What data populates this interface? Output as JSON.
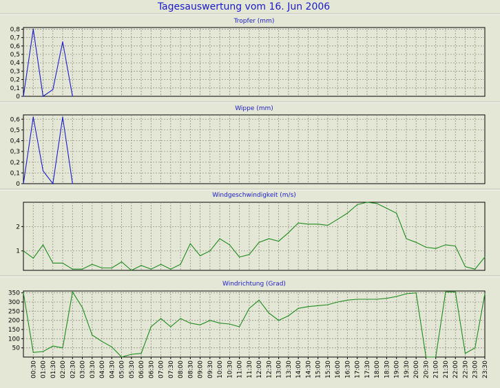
{
  "page": {
    "title": "Tagesauswertung vom 16. Jun 2006"
  },
  "chart_data": [
    {
      "type": "line",
      "title": "Tropfer (mm)",
      "ylim": [
        0,
        0.82
      ],
      "yticks": [
        0,
        0.1,
        0.2,
        0.3,
        0.4,
        0.5,
        0.6,
        0.7,
        0.8
      ],
      "ytick_labels": [
        "0",
        "0,1",
        "0,2",
        "0,3",
        "0,4",
        "0,5",
        "0,6",
        "0,7",
        "0,8"
      ],
      "color": "#1a1acc",
      "x": [
        "00:00",
        "00:30",
        "01:00",
        "01:30",
        "02:00",
        "02:30"
      ],
      "values": [
        0,
        0.8,
        0,
        0.08,
        0.65,
        0
      ]
    },
    {
      "type": "line",
      "title": "Wippe (mm)",
      "ylim": [
        0,
        0.64
      ],
      "yticks": [
        0,
        0.1,
        0.2,
        0.3,
        0.4,
        0.5,
        0.6
      ],
      "ytick_labels": [
        "0",
        "0,1",
        "0,2",
        "0,3",
        "0,4",
        "0,5",
        "0,6"
      ],
      "color": "#1a1acc",
      "x": [
        "00:00",
        "00:30",
        "01:00",
        "01:30",
        "02:00",
        "02:30"
      ],
      "values": [
        0,
        0.62,
        0.12,
        0,
        0.62,
        0
      ]
    },
    {
      "type": "line",
      "title": "Windgeschwindigkeit (m/s)",
      "ylim": [
        0.2,
        3.0
      ],
      "yticks": [
        1,
        2
      ],
      "ytick_labels": [
        "1",
        "2"
      ],
      "color": "#1d8a1d",
      "x": [
        "00:00",
        "00:30",
        "01:00",
        "01:30",
        "02:00",
        "02:30",
        "03:00",
        "03:30",
        "04:00",
        "04:30",
        "05:00",
        "05:30",
        "06:00",
        "06:30",
        "07:00",
        "07:30",
        "08:00",
        "08:30",
        "09:00",
        "09:30",
        "10:00",
        "10:30",
        "11:00",
        "11:30",
        "12:00",
        "12:30",
        "13:00",
        "13:30",
        "14:00",
        "14:30",
        "15:00",
        "15:30",
        "16:00",
        "16:30",
        "17:00",
        "17:30",
        "18:00",
        "18:30",
        "19:00",
        "19:30",
        "20:00",
        "20:30",
        "21:00",
        "21:30",
        "22:00",
        "22:30",
        "23:00",
        "23:30"
      ],
      "values": [
        1.0,
        0.7,
        1.25,
        0.5,
        0.5,
        0.25,
        0.25,
        0.45,
        0.3,
        0.3,
        0.55,
        0.2,
        0.4,
        0.25,
        0.45,
        0.25,
        0.45,
        1.3,
        0.8,
        1.0,
        1.5,
        1.25,
        0.75,
        0.85,
        1.35,
        1.5,
        1.4,
        1.75,
        2.15,
        2.1,
        2.1,
        2.05,
        2.3,
        2.55,
        2.9,
        3.0,
        2.95,
        2.75,
        2.55,
        1.5,
        1.35,
        1.15,
        1.1,
        1.25,
        1.2,
        0.35,
        0.25,
        0.75
      ]
    },
    {
      "type": "line",
      "title": "Windrichtung (Grad)",
      "ylim": [
        0,
        360
      ],
      "yticks": [
        50,
        100,
        150,
        200,
        250,
        300,
        350
      ],
      "ytick_labels": [
        "50",
        "100",
        "150",
        "200",
        "250",
        "300",
        "350"
      ],
      "color": "#1d8a1d",
      "x": [
        "00:00",
        "00:30",
        "01:00",
        "01:30",
        "02:00",
        "02:30",
        "03:00",
        "03:30",
        "04:00",
        "04:30",
        "05:00",
        "05:30",
        "06:00",
        "06:30",
        "07:00",
        "07:30",
        "08:00",
        "08:30",
        "09:00",
        "09:30",
        "10:00",
        "10:30",
        "11:00",
        "11:30",
        "12:00",
        "12:30",
        "13:00",
        "13:30",
        "14:00",
        "14:30",
        "15:00",
        "15:30",
        "16:00",
        "16:30",
        "17:00",
        "17:30",
        "18:00",
        "18:30",
        "19:00",
        "19:30",
        "20:00",
        "20:30",
        "21:00",
        "21:30",
        "22:00",
        "22:30",
        "23:00",
        "23:30"
      ],
      "values": [
        350,
        25,
        30,
        60,
        50,
        355,
        270,
        120,
        85,
        55,
        0,
        15,
        20,
        165,
        210,
        165,
        210,
        185,
        175,
        200,
        185,
        180,
        165,
        265,
        310,
        240,
        200,
        225,
        265,
        275,
        280,
        285,
        300,
        310,
        315,
        315,
        315,
        320,
        330,
        345,
        350,
        0,
        0,
        355,
        355,
        20,
        50,
        345
      ]
    }
  ],
  "x_axis": {
    "labels": [
      "00:30",
      "01:00",
      "01:30",
      "02:00",
      "02:30",
      "03:00",
      "03:30",
      "04:00",
      "04:30",
      "05:00",
      "05:30",
      "06:00",
      "06:30",
      "07:00",
      "07:30",
      "08:00",
      "08:30",
      "09:00",
      "09:30",
      "10:00",
      "10:30",
      "11:00",
      "11:30",
      "12:00",
      "12:30",
      "13:00",
      "13:30",
      "14:00",
      "14:30",
      "15:00",
      "15:30",
      "16:00",
      "16:30",
      "17:00",
      "17:30",
      "18:00",
      "18:30",
      "19:00",
      "19:30",
      "20:00",
      "20:30",
      "21:00",
      "21:30",
      "22:00",
      "22:30",
      "23:00",
      "23:30"
    ]
  }
}
